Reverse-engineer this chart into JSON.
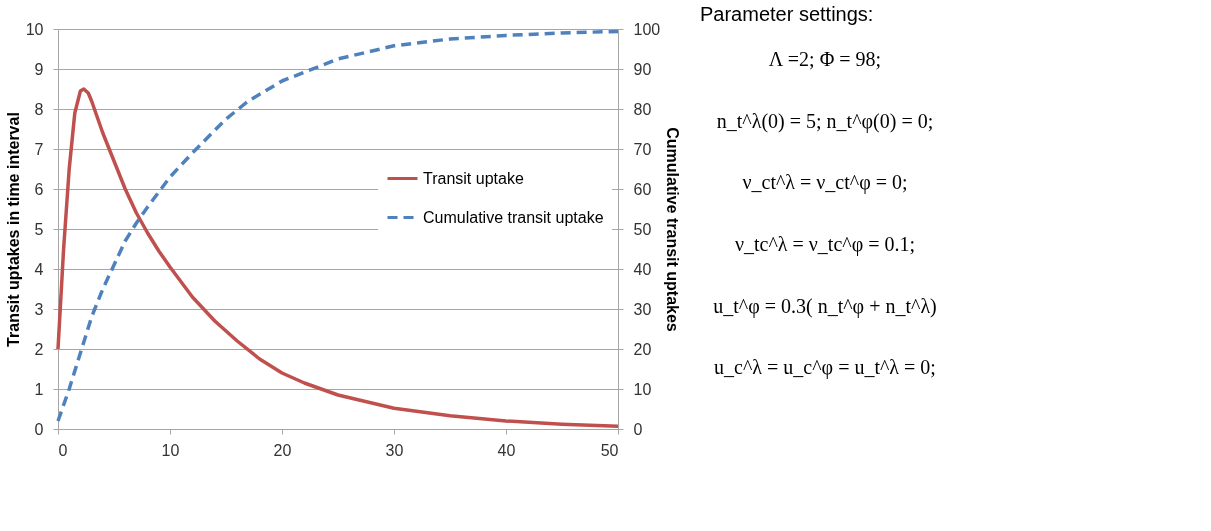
{
  "chart_data": [
    {
      "type": "line",
      "xlim": [
        0,
        50
      ],
      "xticks": [
        0,
        10,
        20,
        30,
        40,
        50
      ],
      "ylim": [
        0,
        10
      ],
      "yticks": [
        0,
        1,
        2,
        3,
        4,
        5,
        6,
        7,
        8,
        9,
        10
      ],
      "y2lim": [
        0,
        100
      ],
      "y2ticks": [
        0,
        10,
        20,
        30,
        40,
        50,
        60,
        70,
        80,
        90,
        100
      ],
      "ylabel": "Transit  uptakes in time interval",
      "y2label": "Cumulative transit uptakes",
      "grid": "y",
      "legend": "right",
      "series": [
        {
          "name": "Transit uptake",
          "color": "#c0504d",
          "line_style": "solid",
          "x": [
            0,
            0.5,
            1,
            1.5,
            2,
            2.3,
            2.7,
            3,
            4,
            5,
            6,
            7,
            8,
            9,
            10,
            12,
            14,
            16,
            18,
            20,
            22,
            25,
            30,
            35,
            40,
            45,
            50
          ],
          "values": [
            2,
            4.5,
            6.5,
            7.9,
            8.45,
            8.5,
            8.4,
            8.2,
            7.4,
            6.7,
            6.0,
            5.4,
            4.9,
            4.45,
            4.05,
            3.3,
            2.7,
            2.2,
            1.75,
            1.4,
            1.15,
            0.85,
            0.52,
            0.33,
            0.2,
            0.12,
            0.07
          ]
        },
        {
          "name": "Cumulative transit uptake",
          "color": "#4f81bd",
          "line_style": "dashed",
          "axis": "y2",
          "x": [
            0,
            1,
            2,
            3,
            4,
            5,
            6,
            7,
            8,
            10,
            12,
            15,
            17,
            20,
            25,
            30,
            35,
            40,
            45,
            50
          ],
          "values": [
            2,
            10,
            19,
            28,
            35,
            41,
            47,
            51.5,
            55.5,
            63,
            69,
            77.5,
            82,
            87,
            92.5,
            95.8,
            97.5,
            98.4,
            99,
            99.4
          ]
        }
      ]
    },
    {
      "type": "other",
      "title": "Parameter settings:",
      "annotations": [
        "Λ =2; Φ = 98;",
        "n_t^λ(0) = 5; n_t^φ(0) = 0;",
        "ν_ct^λ = ν_ct^φ = 0;",
        "ν_tc^λ = ν_tc^φ = 0.1;",
        "u_t^φ = 0.3( n_t^φ + n_t^λ)",
        "u_c^λ = u_c^φ = u_t^λ = 0;"
      ]
    }
  ]
}
